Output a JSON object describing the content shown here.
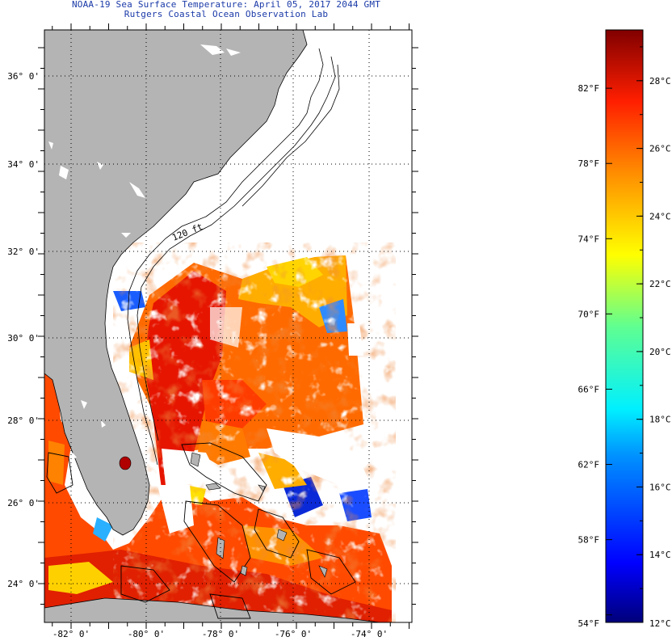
{
  "header": {
    "title": "NOAA-19 Sea Surface Temperature:  April 05, 2017 2044 GMT",
    "subtitle": "Rutgers Coastal Ocean Observation Lab"
  },
  "map": {
    "lat_labels": [
      "36° 0'",
      "34° 0'",
      "32° 0'",
      "30° 0'",
      "28° 0'",
      "26° 0'",
      "24° 0'"
    ],
    "lon_labels": [
      "-82° 0'",
      "-80° 0'",
      "-78° 0'",
      "-76° 0'",
      "-74° 0'"
    ],
    "lat_range": [
      23,
      37
    ],
    "lon_range": [
      -83,
      -73
    ],
    "grid": "dotted",
    "isobath_label": "120 ft",
    "colors": {
      "land": "#b4b4b4",
      "no_data": "#ffffff",
      "coast_line": "#000000"
    }
  },
  "colorbar": {
    "fahrenheit_labels": [
      "82°F",
      "78°F",
      "74°F",
      "70°F",
      "66°F",
      "62°F",
      "58°F",
      "54°F"
    ],
    "celsius_labels": [
      "28°C",
      "26°C",
      "24°C",
      "22°C",
      "20°C",
      "18°C",
      "16°C",
      "14°C",
      "12°C"
    ],
    "range_c": [
      12,
      29.5
    ],
    "colormap": "jet"
  }
}
